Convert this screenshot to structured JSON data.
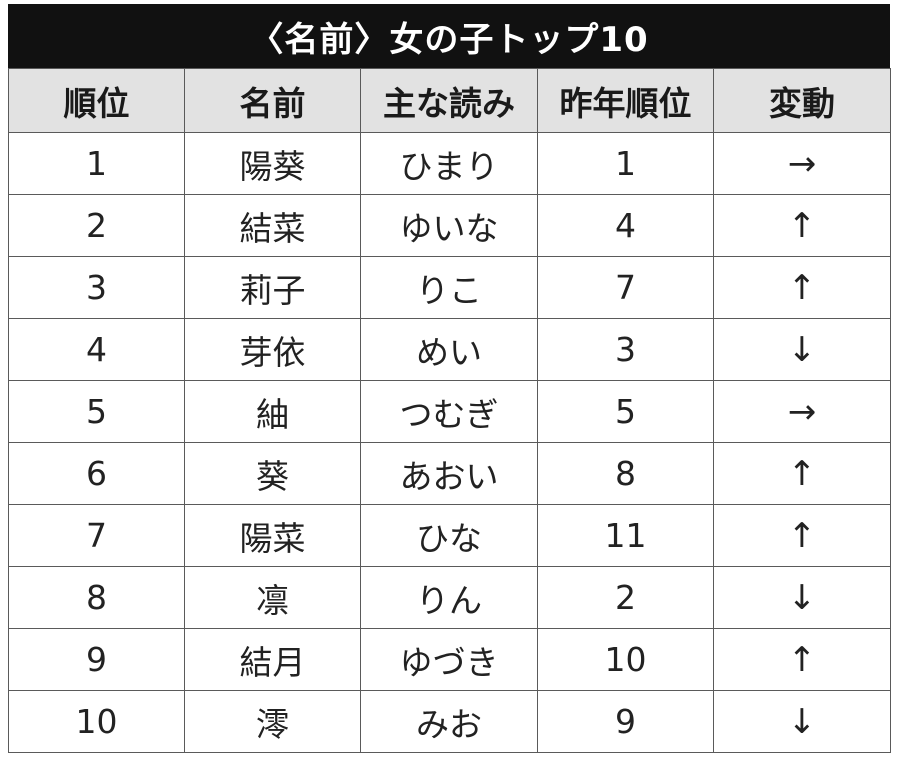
{
  "title": "〈名前〉女の子トップ10",
  "headers": [
    "順位",
    "名前",
    "主な読み",
    "昨年順位",
    "変動"
  ],
  "rows": [
    {
      "rank": "1",
      "name": "陽葵",
      "reading": "ひまり",
      "last_year": "1",
      "change": "→"
    },
    {
      "rank": "2",
      "name": "結菜",
      "reading": "ゆいな",
      "last_year": "4",
      "change": "↑"
    },
    {
      "rank": "3",
      "name": "莉子",
      "reading": "りこ",
      "last_year": "7",
      "change": "↑"
    },
    {
      "rank": "4",
      "name": "芽依",
      "reading": "めい",
      "last_year": "3",
      "change": "↓"
    },
    {
      "rank": "5",
      "name": "紬",
      "reading": "つむぎ",
      "last_year": "5",
      "change": "→"
    },
    {
      "rank": "6",
      "name": "葵",
      "reading": "あおい",
      "last_year": "8",
      "change": "↑"
    },
    {
      "rank": "7",
      "name": "陽菜",
      "reading": "ひな",
      "last_year": "11",
      "change": "↑"
    },
    {
      "rank": "8",
      "name": "凛",
      "reading": "りん",
      "last_year": "2",
      "change": "↓"
    },
    {
      "rank": "9",
      "name": "結月",
      "reading": "ゆづき",
      "last_year": "10",
      "change": "↑"
    },
    {
      "rank": "10",
      "name": "澪",
      "reading": "みお",
      "last_year": "9",
      "change": "↓"
    }
  ]
}
